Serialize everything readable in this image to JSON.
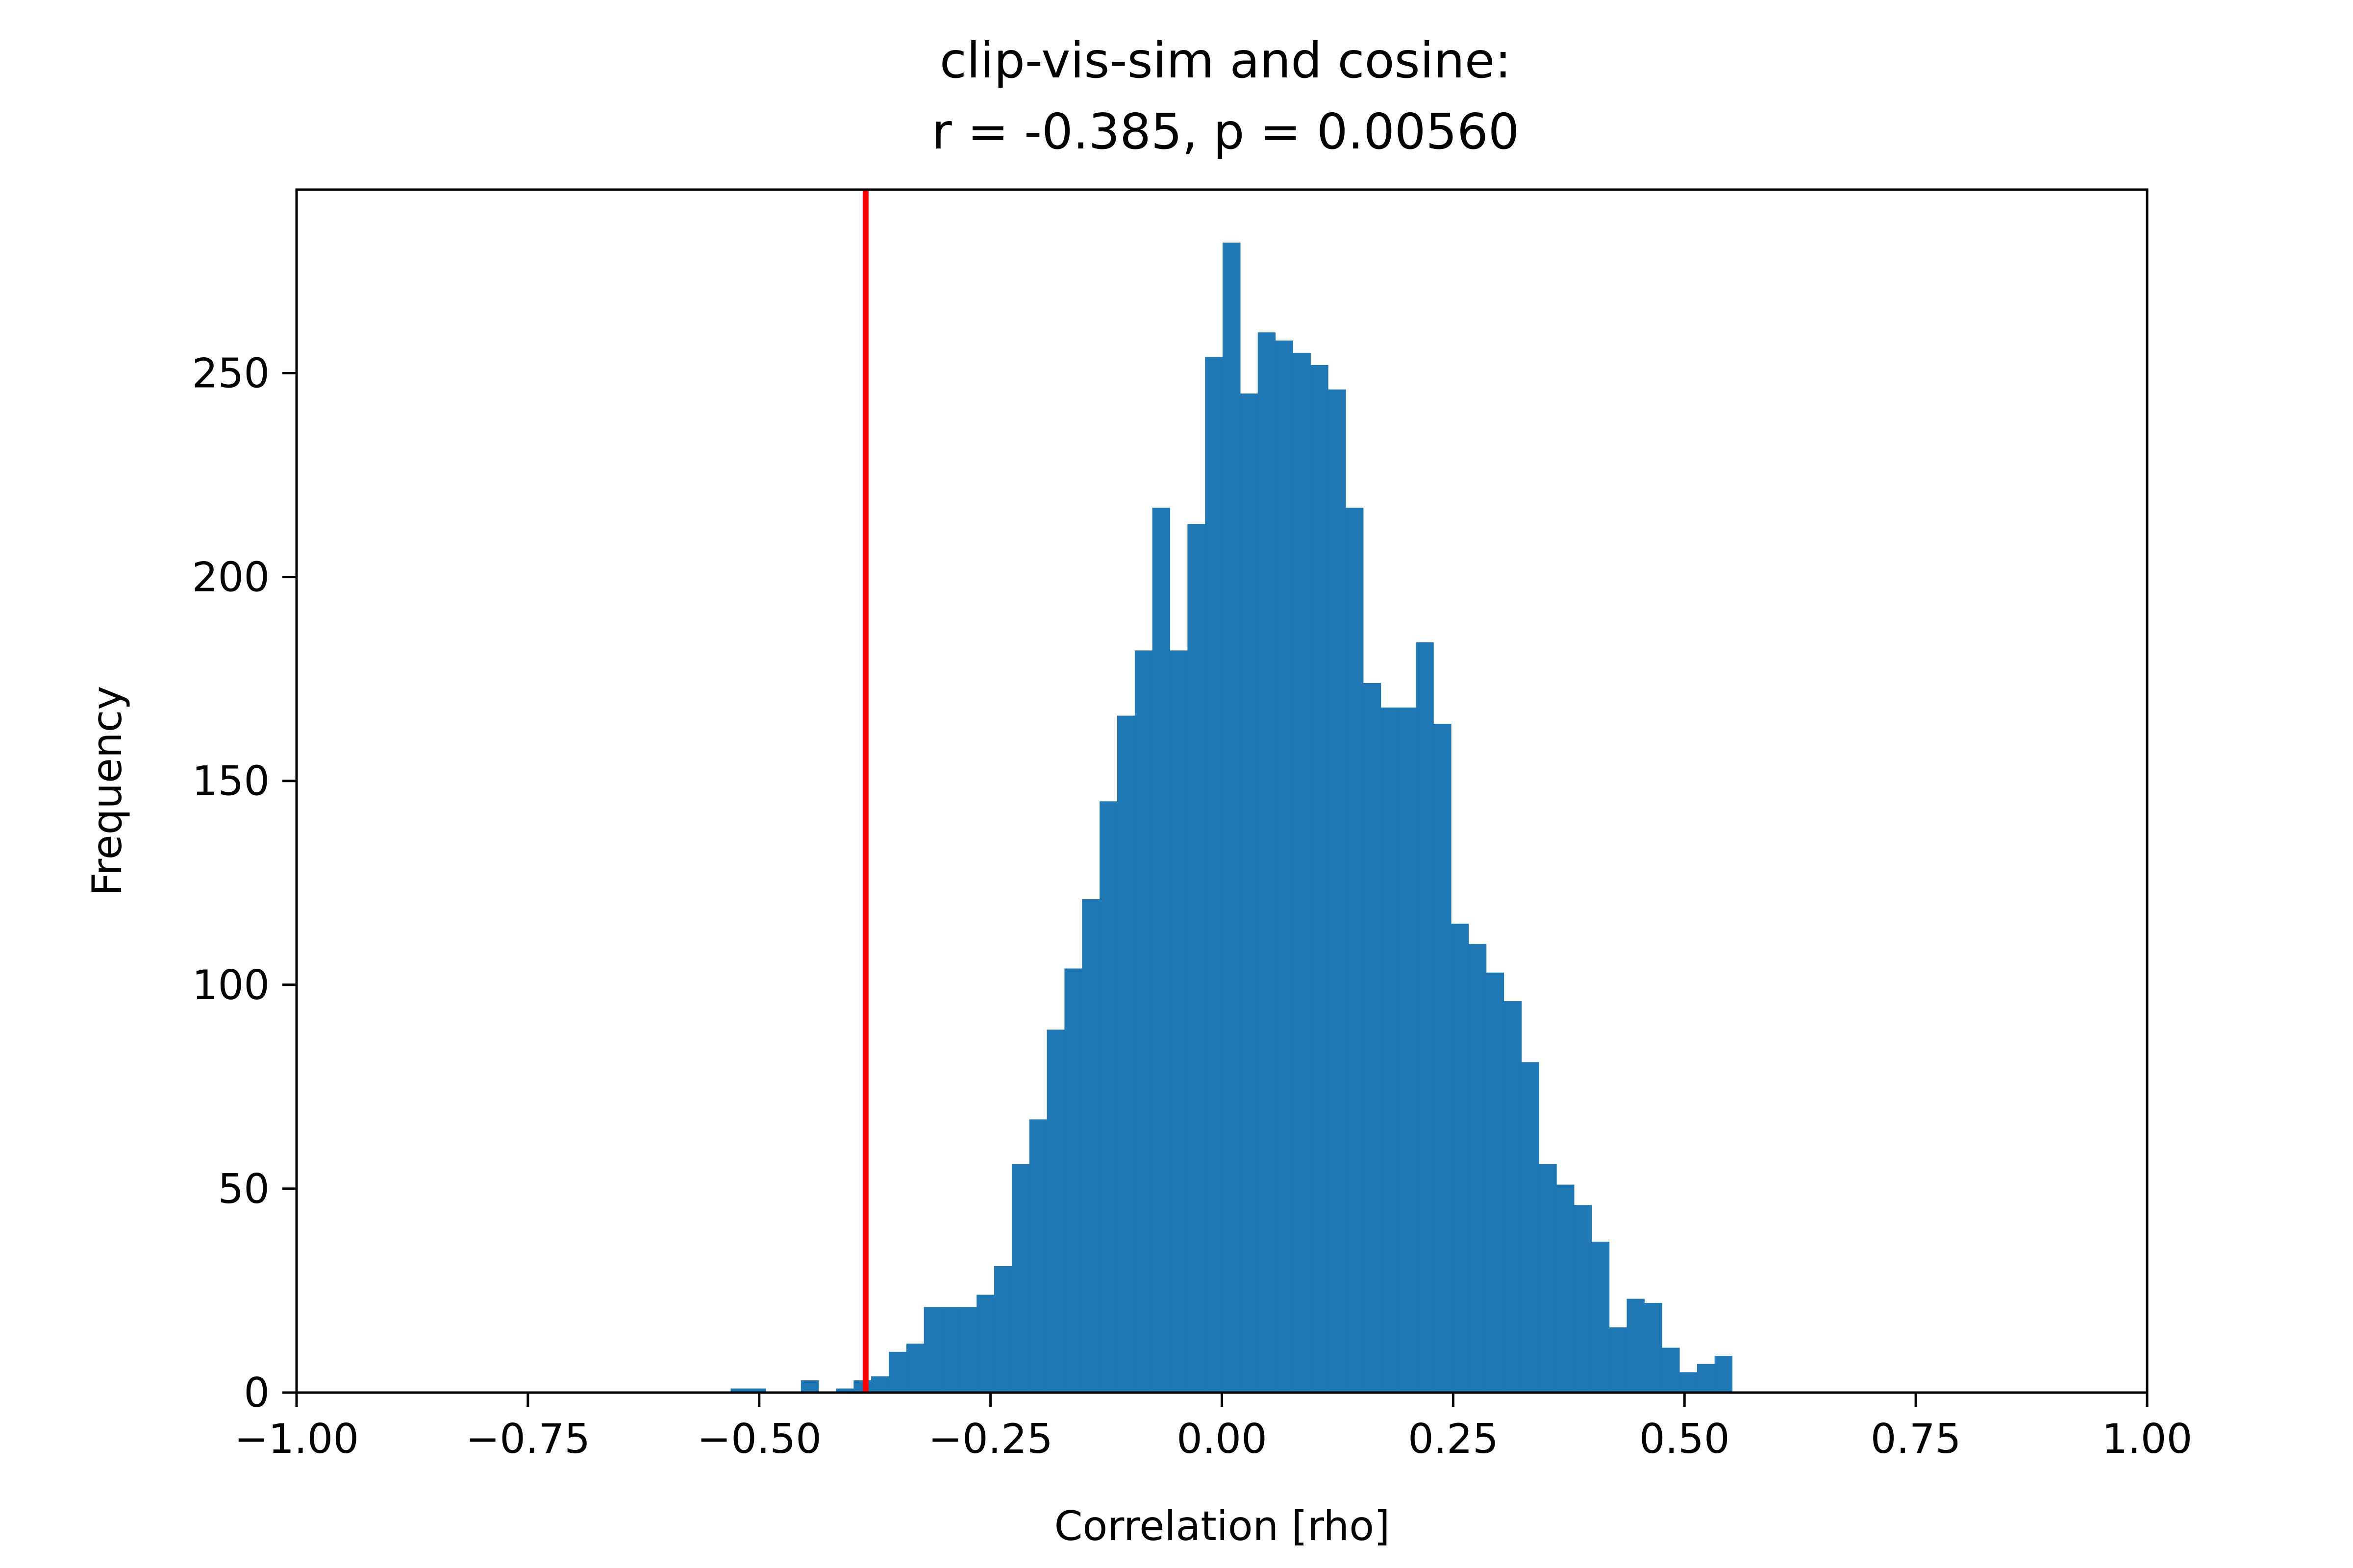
{
  "chart_data": {
    "type": "bar",
    "title_lines": [
      "clip-vis-sim and cosine:",
      "r = -0.385, p = 0.00560"
    ],
    "xlabel": "Correlation [rho]",
    "ylabel": "Frequency",
    "xlim": [
      -1.0,
      1.0
    ],
    "ylim": [
      0,
      295
    ],
    "x_ticks": [
      -1.0,
      -0.75,
      -0.5,
      -0.25,
      0.0,
      0.25,
      0.5,
      0.75,
      1.0
    ],
    "x_tick_labels": [
      "−1.00",
      "−0.75",
      "−0.50",
      "−0.25",
      "0.00",
      "0.25",
      "0.50",
      "0.75",
      "1.00"
    ],
    "y_ticks": [
      0,
      50,
      100,
      150,
      200,
      250
    ],
    "y_tick_labels": [
      "0",
      "50",
      "100",
      "150",
      "200",
      "250"
    ],
    "bar_color": "#1f77b4",
    "observed_line": {
      "x": -0.385,
      "color": "#ff0000"
    },
    "bins_start": -0.5309,
    "bin_width": 0.01899,
    "counts": [
      1,
      1,
      0,
      0,
      3,
      0,
      1,
      3,
      4,
      10,
      12,
      21,
      21,
      21,
      24,
      31,
      56,
      67,
      89,
      104,
      121,
      145,
      166,
      182,
      217,
      182,
      213,
      254,
      282,
      245,
      260,
      258,
      255,
      252,
      246,
      217,
      174,
      168,
      168,
      184,
      164,
      115,
      110,
      103,
      96,
      81,
      56,
      51,
      46,
      37,
      16,
      23,
      22,
      11,
      5,
      7,
      9
    ]
  }
}
